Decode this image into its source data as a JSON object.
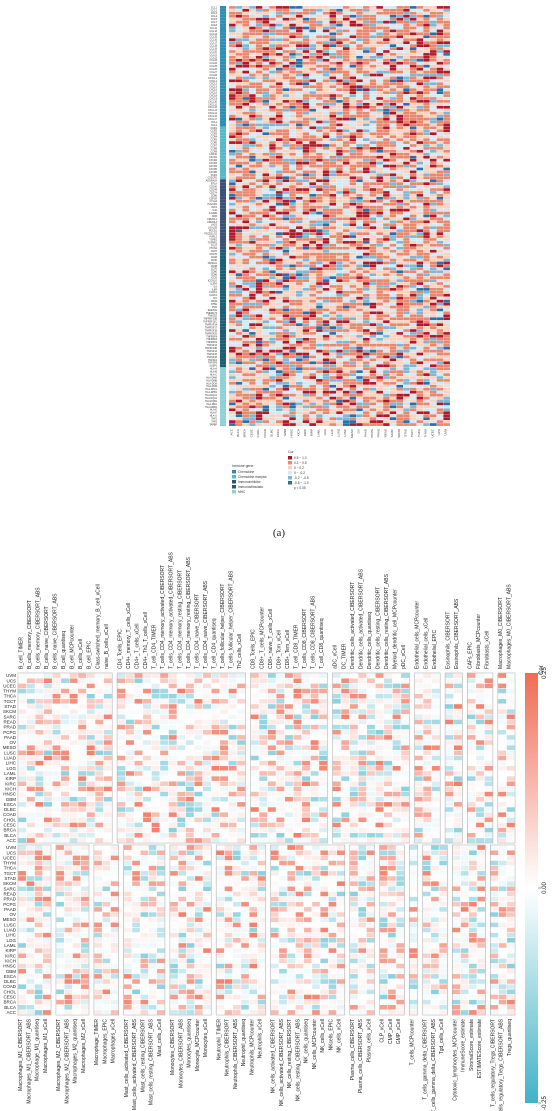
{
  "figure": {
    "panel_a_label": "(a)"
  },
  "chart_data": [
    {
      "type": "heatmap",
      "panel": "a",
      "rows": [
        "CCL1",
        "CCL2",
        "CCL3",
        "CCL4",
        "CCL5",
        "CCL7",
        "CCL8",
        "CCL11",
        "CCL13",
        "CCL14",
        "CCL15",
        "CCL16",
        "CCL17",
        "CCL18",
        "CCL19",
        "CCL20",
        "CCL21",
        "CCL22",
        "CCL23",
        "CCL24",
        "CCL25",
        "CCL26",
        "CCL27",
        "CCL28",
        "CX3CL1",
        "CXCL1",
        "CXCL2",
        "CXCL3",
        "CXCL5",
        "CXCL6",
        "CXCL8",
        "CXCL9",
        "CXCL10",
        "CXCL11",
        "CXCL12",
        "CXCL13",
        "CXCL14",
        "CXCL16",
        "CXCL17",
        "XCL1",
        "XCL2",
        "CCR1",
        "CCR2",
        "CCR3",
        "CCR4",
        "CCR5",
        "CCR6",
        "CCR7",
        "CCR8",
        "CCR9",
        "CCR10",
        "CXCR1",
        "CXCR2",
        "CXCR3",
        "CXCR4",
        "CXCR5",
        "CXCR6",
        "XCR1",
        "CX3CR1",
        "ADORA2A",
        "BTLA",
        "CD160",
        "CD244",
        "CD274",
        "CD96",
        "CSF1R",
        "CTLA4",
        "HAVCR2",
        "IDO1",
        "IL10",
        "IL10RB",
        "KDR",
        "KIR2DL1",
        "KIR2DL3",
        "LAG3",
        "LGALS9",
        "PDCD1",
        "PDCD1LG2",
        "PVRL2",
        "TGFB1",
        "TGFBR1",
        "TIGIT",
        "VTCN1",
        "CD27",
        "CD276",
        "CD28",
        "CD40",
        "CD40LG",
        "CD48",
        "CD70",
        "CD80",
        "CD86",
        "ICOS",
        "ICOSLG",
        "IL2RA",
        "IL6",
        "IL6R",
        "KLRC1",
        "KLRK1",
        "LTA",
        "MICB",
        "NT5E",
        "PVR",
        "RAET1E",
        "TMEM173",
        "TMIGD2",
        "TNFRSF13B",
        "TNFRSF13C",
        "TNFRSF14",
        "TNFRSF17",
        "TNFRSF18",
        "TNFRSF25",
        "TNFRSF4",
        "TNFRSF8",
        "TNFRSF9",
        "TNFSF13",
        "TNFSF13B",
        "TNFSF14",
        "TNFSF15",
        "TNFSF18",
        "TNFSF4",
        "TNFSF9",
        "ULBP1",
        "HLA-A",
        "HLA-B",
        "HLA-C",
        "HLA-DMA",
        "HLA-DMB",
        "HLA-DOA",
        "HLA-DOB",
        "HLA-DPA1",
        "HLA-DPB1",
        "HLA-DQA1",
        "HLA-DQA2",
        "HLA-DQB1",
        "HLA-DRA",
        "HLA-DRB1",
        "HLA-E",
        "HLA-F",
        "HLA-G",
        "TAP1",
        "TAP2",
        "TAPBP"
      ],
      "columns": [
        "ACC",
        "BLCA",
        "BRCA",
        "CESC",
        "CHOL",
        "COAD",
        "DLBC",
        "ESCA",
        "GBM",
        "HNSC",
        "KICH",
        "KIRC",
        "KIRP",
        "LAML",
        "LGG",
        "LIHC",
        "LUAD",
        "LUSC",
        "MESO",
        "OV",
        "PAAD",
        "PCPG",
        "PRAD",
        "READ",
        "SARC",
        "SKCM",
        "STAD",
        "TGCT",
        "THCA",
        "THYM",
        "UCEC",
        "UCS",
        "UVM"
      ],
      "legend_title": "Immune gene",
      "categories": [
        "Chemokine",
        "Chemokine receptor",
        "Immunoinhibitor",
        "Immunostimulator",
        "MHC"
      ],
      "category_colors": [
        "#2e8fb5",
        "#55b8c9",
        "#38507a",
        "#1b5e77",
        "#8fcfd9"
      ],
      "color_legend_title": "Cor",
      "color_bins": [
        "0.5 ~ 1.0",
        "0.2 ~ 0.5",
        "0 ~ 0.2",
        "0 ~ -0.2",
        "-0.2 ~ -0.5",
        "-0.5 ~ -1.0"
      ],
      "significance_note": "p < 0.05",
      "bin_colors": [
        "#b2182b",
        "#e8896f",
        "#f8d3c1",
        "#d6e9f2",
        "#7fb8d6",
        "#2c6fa8"
      ],
      "cell_values_note": "Each cell prints a correlation value with significance stars (illegible at this resolution)."
    },
    {
      "type": "heatmap",
      "panel": "b",
      "color_legend_title": "Cor",
      "color_scale": {
        "min": -0.25,
        "max": 0.25,
        "ticks": [
          0.25,
          0.0,
          -0.25
        ]
      },
      "rows": [
        "UVM",
        "UCS",
        "UCEC",
        "THYM",
        "THCA",
        "TGCT",
        "STAD",
        "SKCM",
        "SARC",
        "READ",
        "PRAD",
        "PCPG",
        "PAAD",
        "OV",
        "MESO",
        "LUSC",
        "LUAD",
        "LIHC",
        "LGG",
        "LAML",
        "KIRP",
        "KIRC",
        "KICH",
        "HNSC",
        "GBM",
        "ESCA",
        "DLBC",
        "COAD",
        "CHOL",
        "CESC",
        "BRCA",
        "BLCA",
        "ACC"
      ],
      "top_groups": [
        [
          "B_cell_TIMER",
          "B_cells_memory_CIBERSORT",
          "B_cells_memory_CIBERSORT_ABS",
          "B_cells_naive_CIBERSORT",
          "B_cells_naive_CIBERSORT_ABS",
          "B_cell_quantiseq",
          "B_cell_MCPcounter",
          "B_cells_xCell",
          "B_cell_EPIC",
          "Class-switched_memory_B_cell_xCell",
          "naive_B_cells_xCell"
        ],
        [
          "CD4_Tcells_EPIC",
          "CD4+_memory_T_cells_xCell",
          "CD4+_T_cells_xCell",
          "CD4+_Th1_T_cells_xCell",
          "T_cell_CD4_TIMER",
          "T_cells_CD4_memory_activated_CIBERSORT",
          "T_cells_CD4_memory_activated_CIBERSORT_ABS",
          "T_cells_CD4_memory_resting_CIBERSORT",
          "T_cells_CD4_memory_resting_CIBERSORT_ABS",
          "T_cells_CD4_naive_CIBERSORT",
          "T_cells_CD4_naive_CIBERSORT_ABS",
          "T_cell_CD4_quantiseq",
          "T_cells_follicular_helper_CIBERSORT",
          "T_cells_follicular_helper_CIBERSORT_ABS",
          "Th2_cells_xCell"
        ],
        [
          "CD8_Tcells_EPIC",
          "CD8+_T_cells_MCPcounter",
          "CD8+_naive_T_cells_xCell",
          "CD8+_Tcm_xCell",
          "CD8+_Tem_xCell",
          "T_cell_CD8_TIMER",
          "T_cells_CD8_CIBERSORT",
          "T_cells_CD8_CIBERSORT_ABS",
          "T_cell_CD8_quantiseq"
        ],
        [
          "aDC_xCell",
          "DC_TIMER",
          "Dendritic_cells_activated_CIBERSORT",
          "Dendritic_cells_activated_CIBERSORT_ABS",
          "Dendritic_cells_quantiseq",
          "Dendritic_cells_resting_CIBERSORT",
          "Dendritic_cells_resting_CIBERSORT_ABS",
          "Myeloid_dendritic_cell_MCPcounter",
          "pDC_xCell"
        ],
        [
          "Endothelial_cells_MCPcounter",
          "Endothelial_cells_xCell",
          "Endothelial_EPIC"
        ],
        [
          "Eosinophils_CIBERSORT",
          "Eosinophils_CIBERSORT_ABS"
        ],
        [
          "CAFs_EPIC",
          "Fibroblasts_MCPcounter",
          "Fibroblasts_xCell"
        ],
        [
          "Macrophages_M0_CIBERSORT",
          "Macrophages_M0_CIBERSORT_ABS"
        ]
      ],
      "bottom_groups": [
        [
          "Macrophages_M1_CIBERSORT",
          "Macrophages_M1_CIBERSORT_ABS",
          "Macrophage_M1_quantiseq",
          "Macrophages_M1_xCell"
        ],
        [
          "Macrophages_M2_CIBERSORT",
          "Macrophages_M2_CIBERSORT_ABS",
          "Macrophages_M2_quantiseq",
          "Macrophages_M2_xCell"
        ],
        [
          "Macrophage_TIMER",
          "Macrophages_EPIC",
          "Macrophages_xCell"
        ],
        [
          "Mast_cells_activated_CIBERSORT",
          "Mast_cells_activated_CIBERSORT_ABS",
          "Mast_cells_resting_CIBERSORT",
          "Mast_cells_resting_CIBERSORT_ABS",
          "Mast_cells_xCell"
        ],
        [
          "Monocytes_CIBERSORT",
          "Monocytes_CIBERSORT_ABS",
          "Monocytes_quantiseq",
          "Monocyte_MCPcounter",
          "Monocytes_xCell"
        ],
        [
          "Neutrophil_TIMER",
          "Neutrophils_CIBERSORT",
          "Neutrophils_CIBERSORT_ABS",
          "Neutrophil_quantiseq",
          "Neutrophils_MCPcounter",
          "Neutrophils_xCell"
        ],
        [
          "NK_cells_activated_CIBERSORT",
          "NK_cells_activated_CIBERSORT_ABS",
          "NK_cells_resting_CIBERSORT",
          "NK_cells_resting_CIBERSORT_ABS",
          "NK_cells_quantiseq",
          "NK_cells_MCPcounter",
          "NK_cells_xCell",
          "NKcells_EPIC",
          "NK_cells_xCell"
        ],
        [
          "Plasma_cells_CIBERSORT",
          "Plasma_cells_CIBERSORT_ABS",
          "Plasma_cells_xCell"
        ],
        [
          "CLP_xCell",
          "CMP_xCell",
          "GMP_xCell"
        ],
        [
          "T_cells_MCPcounter"
        ],
        [
          "T_cells_gamma_delta_CIBERSORT",
          "T_cells_gamma_delta_CIBERSORT_ABS",
          "Tgd_cells_xCell"
        ],
        [
          "Cytotoxic_lymphocytes_MCPcounter",
          "ImmuneScore_estimate",
          "StromalScore_estimate",
          "ESTIMATEScore_estimate"
        ],
        [
          "T_cells_regulatory_Tregs_CIBERSORT",
          "T_cells_regulatory_Tregs_CIBERSORT_ABS",
          "Tregs_quantiseq"
        ]
      ],
      "cell_values_note": "Correlation coefficients per cancer type and cell population (values not printed; shown only as color)."
    }
  ]
}
